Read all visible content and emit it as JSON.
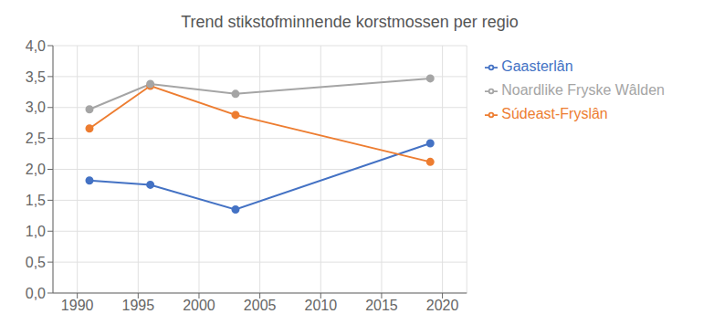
{
  "chart_data": {
    "type": "line",
    "title": "Trend stikstofminnende korstmossen per regio",
    "x": [
      1991,
      1996,
      2003,
      2019
    ],
    "series": [
      {
        "name": "Gaasterlân",
        "color": "#4472C4",
        "marker": "circle",
        "values": [
          1.82,
          1.75,
          1.35,
          2.42
        ]
      },
      {
        "name": "Súdeast-Fryslân",
        "color": "#ED7D31",
        "marker": "circle",
        "values": [
          2.66,
          3.35,
          2.88,
          2.12
        ]
      },
      {
        "name": "Noardlike Fryske Wâlden",
        "color": "#A5A5A5",
        "marker": "circle",
        "values": [
          2.97,
          3.38,
          3.22,
          3.47
        ]
      }
    ],
    "xlim": [
      1988,
      2022
    ],
    "ylim": [
      0.0,
      4.0
    ],
    "xticks": [
      1990,
      1995,
      2000,
      2005,
      2010,
      2015,
      2020
    ],
    "yticks": [
      {
        "value": 0.0,
        "label": "0,0"
      },
      {
        "value": 0.5,
        "label": "0,5"
      },
      {
        "value": 1.0,
        "label": "1,0"
      },
      {
        "value": 1.5,
        "label": "1,5"
      },
      {
        "value": 2.0,
        "label": "2,0"
      },
      {
        "value": 2.5,
        "label": "2,5"
      },
      {
        "value": 3.0,
        "label": "3,0"
      },
      {
        "value": 3.5,
        "label": "3,5"
      },
      {
        "value": 4.0,
        "label": "4,0"
      }
    ],
    "grid": true,
    "legend": "right"
  }
}
